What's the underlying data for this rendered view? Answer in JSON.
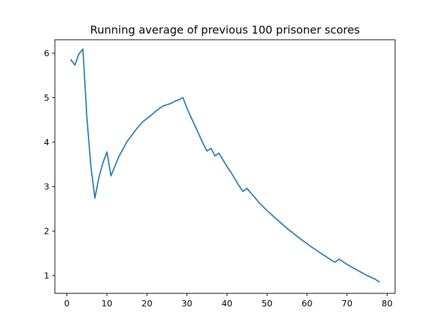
{
  "chart_data": {
    "type": "line",
    "title": "Running average of previous 100 prisoner scores",
    "xlabel": "",
    "ylabel": "",
    "xlim": [
      -3,
      82
    ],
    "ylim": [
      0.6,
      6.3
    ],
    "xticks": [
      0,
      10,
      20,
      30,
      40,
      50,
      60,
      70,
      80
    ],
    "yticks": [
      1,
      2,
      3,
      4,
      5,
      6
    ],
    "grid": false,
    "series": [
      {
        "color": "#1f77b4",
        "x": [
          1,
          2,
          3,
          4,
          5,
          6,
          7,
          8,
          9,
          10,
          11,
          12,
          13,
          14,
          15,
          16,
          17,
          18,
          19,
          20,
          21,
          22,
          23,
          24,
          25,
          26,
          27,
          28,
          29,
          30,
          31,
          32,
          33,
          34,
          35,
          36,
          37,
          38,
          39,
          40,
          41,
          42,
          43,
          44,
          45,
          46,
          47,
          48,
          49,
          50,
          51,
          52,
          53,
          54,
          55,
          56,
          57,
          58,
          59,
          60,
          61,
          62,
          63,
          64,
          65,
          66,
          67,
          68,
          69,
          70,
          71,
          72,
          73,
          74,
          75,
          76,
          77,
          78
        ],
        "values": [
          5.85,
          5.73,
          5.98,
          6.09,
          4.55,
          3.45,
          2.74,
          3.21,
          3.53,
          3.78,
          3.24,
          3.46,
          3.68,
          3.84,
          4.01,
          4.13,
          4.25,
          4.36,
          4.46,
          4.53,
          4.6,
          4.68,
          4.75,
          4.81,
          4.84,
          4.87,
          4.92,
          4.95,
          5.0,
          4.76,
          4.56,
          4.37,
          4.17,
          3.97,
          3.8,
          3.86,
          3.69,
          3.75,
          3.6,
          3.45,
          3.32,
          3.17,
          3.02,
          2.89,
          2.96,
          2.85,
          2.75,
          2.64,
          2.55,
          2.46,
          2.38,
          2.3,
          2.22,
          2.14,
          2.06,
          1.99,
          1.92,
          1.85,
          1.78,
          1.72,
          1.65,
          1.59,
          1.53,
          1.47,
          1.41,
          1.35,
          1.3,
          1.37,
          1.31,
          1.25,
          1.2,
          1.15,
          1.1,
          1.05,
          1.0,
          0.96,
          0.92,
          0.86
        ]
      }
    ]
  }
}
